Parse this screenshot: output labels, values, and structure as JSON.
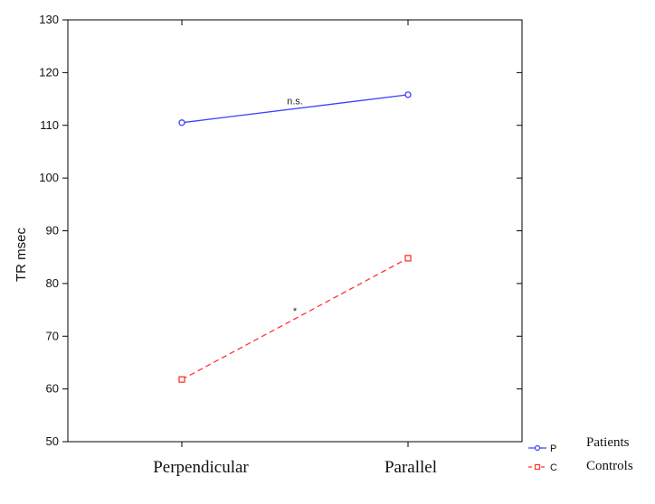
{
  "chart_data": {
    "type": "line",
    "title": "",
    "xlabel": "",
    "ylabel": "TR msec",
    "categories": [
      "Perpendicular",
      "Parallel"
    ],
    "ylim": [
      50,
      130
    ],
    "yticks": [
      50,
      60,
      70,
      80,
      90,
      100,
      110,
      120,
      130
    ],
    "grid": false,
    "legend_position": "bottom-right",
    "series": [
      {
        "name": "Patients",
        "code": "P",
        "values": [
          110.5,
          115.8
        ],
        "color": "#3f3fff",
        "line_style": "solid",
        "marker": "circle",
        "annotation": "n.s."
      },
      {
        "name": "Controls",
        "code": "C",
        "values": [
          61.8,
          84.8
        ],
        "color": "#ff3333",
        "line_style": "dashed",
        "marker": "square",
        "annotation": "*"
      }
    ]
  }
}
